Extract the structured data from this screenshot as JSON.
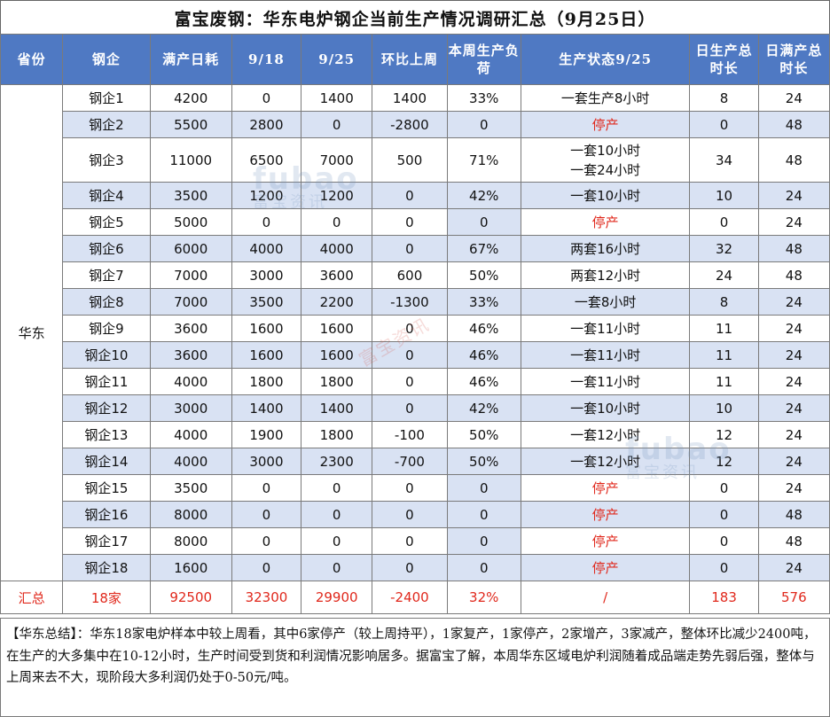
{
  "title": "富宝废钢：华东电炉钢企当前生产情况调研汇总（9月25日）",
  "headers": [
    "省份",
    "钢企",
    "满产日耗",
    "9/18",
    "9/25",
    "环比上周",
    "本周生产负荷",
    "生产状态9/25",
    "日生产总时长",
    "日满产总时长"
  ],
  "region": "华东",
  "rows": [
    {
      "mill": "钢企1",
      "full": "4200",
      "w918": "0",
      "w925": "1400",
      "chg": "1400",
      "load": "33%",
      "status": "一套生产8小时",
      "hours": "8",
      "fullhours": "24"
    },
    {
      "mill": "钢企2",
      "full": "5500",
      "w918": "2800",
      "w925": "0",
      "chg": "-2800",
      "load": "0",
      "status": "停产",
      "hours": "0",
      "fullhours": "48"
    },
    {
      "mill": "钢企3",
      "full": "11000",
      "w918": "6500",
      "w925": "7000",
      "chg": "500",
      "load": "71%",
      "status": "一套10小时\n一套24小时",
      "hours": "34",
      "fullhours": "48"
    },
    {
      "mill": "钢企4",
      "full": "3500",
      "w918": "1200",
      "w925": "1200",
      "chg": "0",
      "load": "42%",
      "status": "一套10小时",
      "hours": "10",
      "fullhours": "24"
    },
    {
      "mill": "钢企5",
      "full": "5000",
      "w918": "0",
      "w925": "0",
      "chg": "0",
      "load": "0",
      "status": "停产",
      "hours": "0",
      "fullhours": "24"
    },
    {
      "mill": "钢企6",
      "full": "6000",
      "w918": "4000",
      "w925": "4000",
      "chg": "0",
      "load": "67%",
      "status": "两套16小时",
      "hours": "32",
      "fullhours": "48"
    },
    {
      "mill": "钢企7",
      "full": "7000",
      "w918": "3000",
      "w925": "3600",
      "chg": "600",
      "load": "50%",
      "status": "两套12小时",
      "hours": "24",
      "fullhours": "48"
    },
    {
      "mill": "钢企8",
      "full": "7000",
      "w918": "3500",
      "w925": "2200",
      "chg": "-1300",
      "load": "33%",
      "status": "一套8小时",
      "hours": "8",
      "fullhours": "24"
    },
    {
      "mill": "钢企9",
      "full": "3600",
      "w918": "1600",
      "w925": "1600",
      "chg": "0",
      "load": "46%",
      "status": "一套11小时",
      "hours": "11",
      "fullhours": "24"
    },
    {
      "mill": "钢企10",
      "full": "3600",
      "w918": "1600",
      "w925": "1600",
      "chg": "0",
      "load": "46%",
      "status": "一套11小时",
      "hours": "11",
      "fullhours": "24"
    },
    {
      "mill": "钢企11",
      "full": "4000",
      "w918": "1800",
      "w925": "1800",
      "chg": "0",
      "load": "46%",
      "status": "一套11小时",
      "hours": "11",
      "fullhours": "24"
    },
    {
      "mill": "钢企12",
      "full": "3000",
      "w918": "1400",
      "w925": "1400",
      "chg": "0",
      "load": "42%",
      "status": "一套10小时",
      "hours": "10",
      "fullhours": "24"
    },
    {
      "mill": "钢企13",
      "full": "4000",
      "w918": "1900",
      "w925": "1800",
      "chg": "-100",
      "load": "50%",
      "status": "一套12小时",
      "hours": "12",
      "fullhours": "24"
    },
    {
      "mill": "钢企14",
      "full": "4000",
      "w918": "3000",
      "w925": "2300",
      "chg": "-700",
      "load": "50%",
      "status": "一套12小时",
      "hours": "12",
      "fullhours": "24"
    },
    {
      "mill": "钢企15",
      "full": "3500",
      "w918": "0",
      "w925": "0",
      "chg": "0",
      "load": "0",
      "status": "停产",
      "hours": "0",
      "fullhours": "24"
    },
    {
      "mill": "钢企16",
      "full": "8000",
      "w918": "0",
      "w925": "0",
      "chg": "0",
      "load": "0",
      "status": "停产",
      "hours": "0",
      "fullhours": "48"
    },
    {
      "mill": "钢企17",
      "full": "8000",
      "w918": "0",
      "w925": "0",
      "chg": "0",
      "load": "0",
      "status": "停产",
      "hours": "0",
      "fullhours": "48"
    },
    {
      "mill": "钢企18",
      "full": "1600",
      "w918": "0",
      "w925": "0",
      "chg": "0",
      "load": "0",
      "status": "停产",
      "hours": "0",
      "fullhours": "24"
    }
  ],
  "summary": {
    "label": "汇总",
    "mill": "18家",
    "full": "92500",
    "w918": "32300",
    "w925": "29900",
    "chg": "-2400",
    "load": "32%",
    "status": "/",
    "hours": "183",
    "fullhours": "576"
  },
  "note": "【华东总结】：华东18家电炉样本中较上周看，其中6家停产（较上周持平），1家复产，1家停产，2家增产，3家减产，整体环比减少2400吨，在生产的大多集中在10-12小时，生产时间受到货和利润情况影响居多。据富宝了解，本周华东区域电炉利润随着成品端走势先弱后强，整体与上周来去不大，现阶段大多利润仍处于0-50元/吨。",
  "watermark": {
    "en": "fubao",
    "zh": "富宝资讯"
  },
  "colors": {
    "header_bg": "#4f79c3",
    "alt_row_bg": "#d9e2f3",
    "stop_text": "#e0281c"
  }
}
